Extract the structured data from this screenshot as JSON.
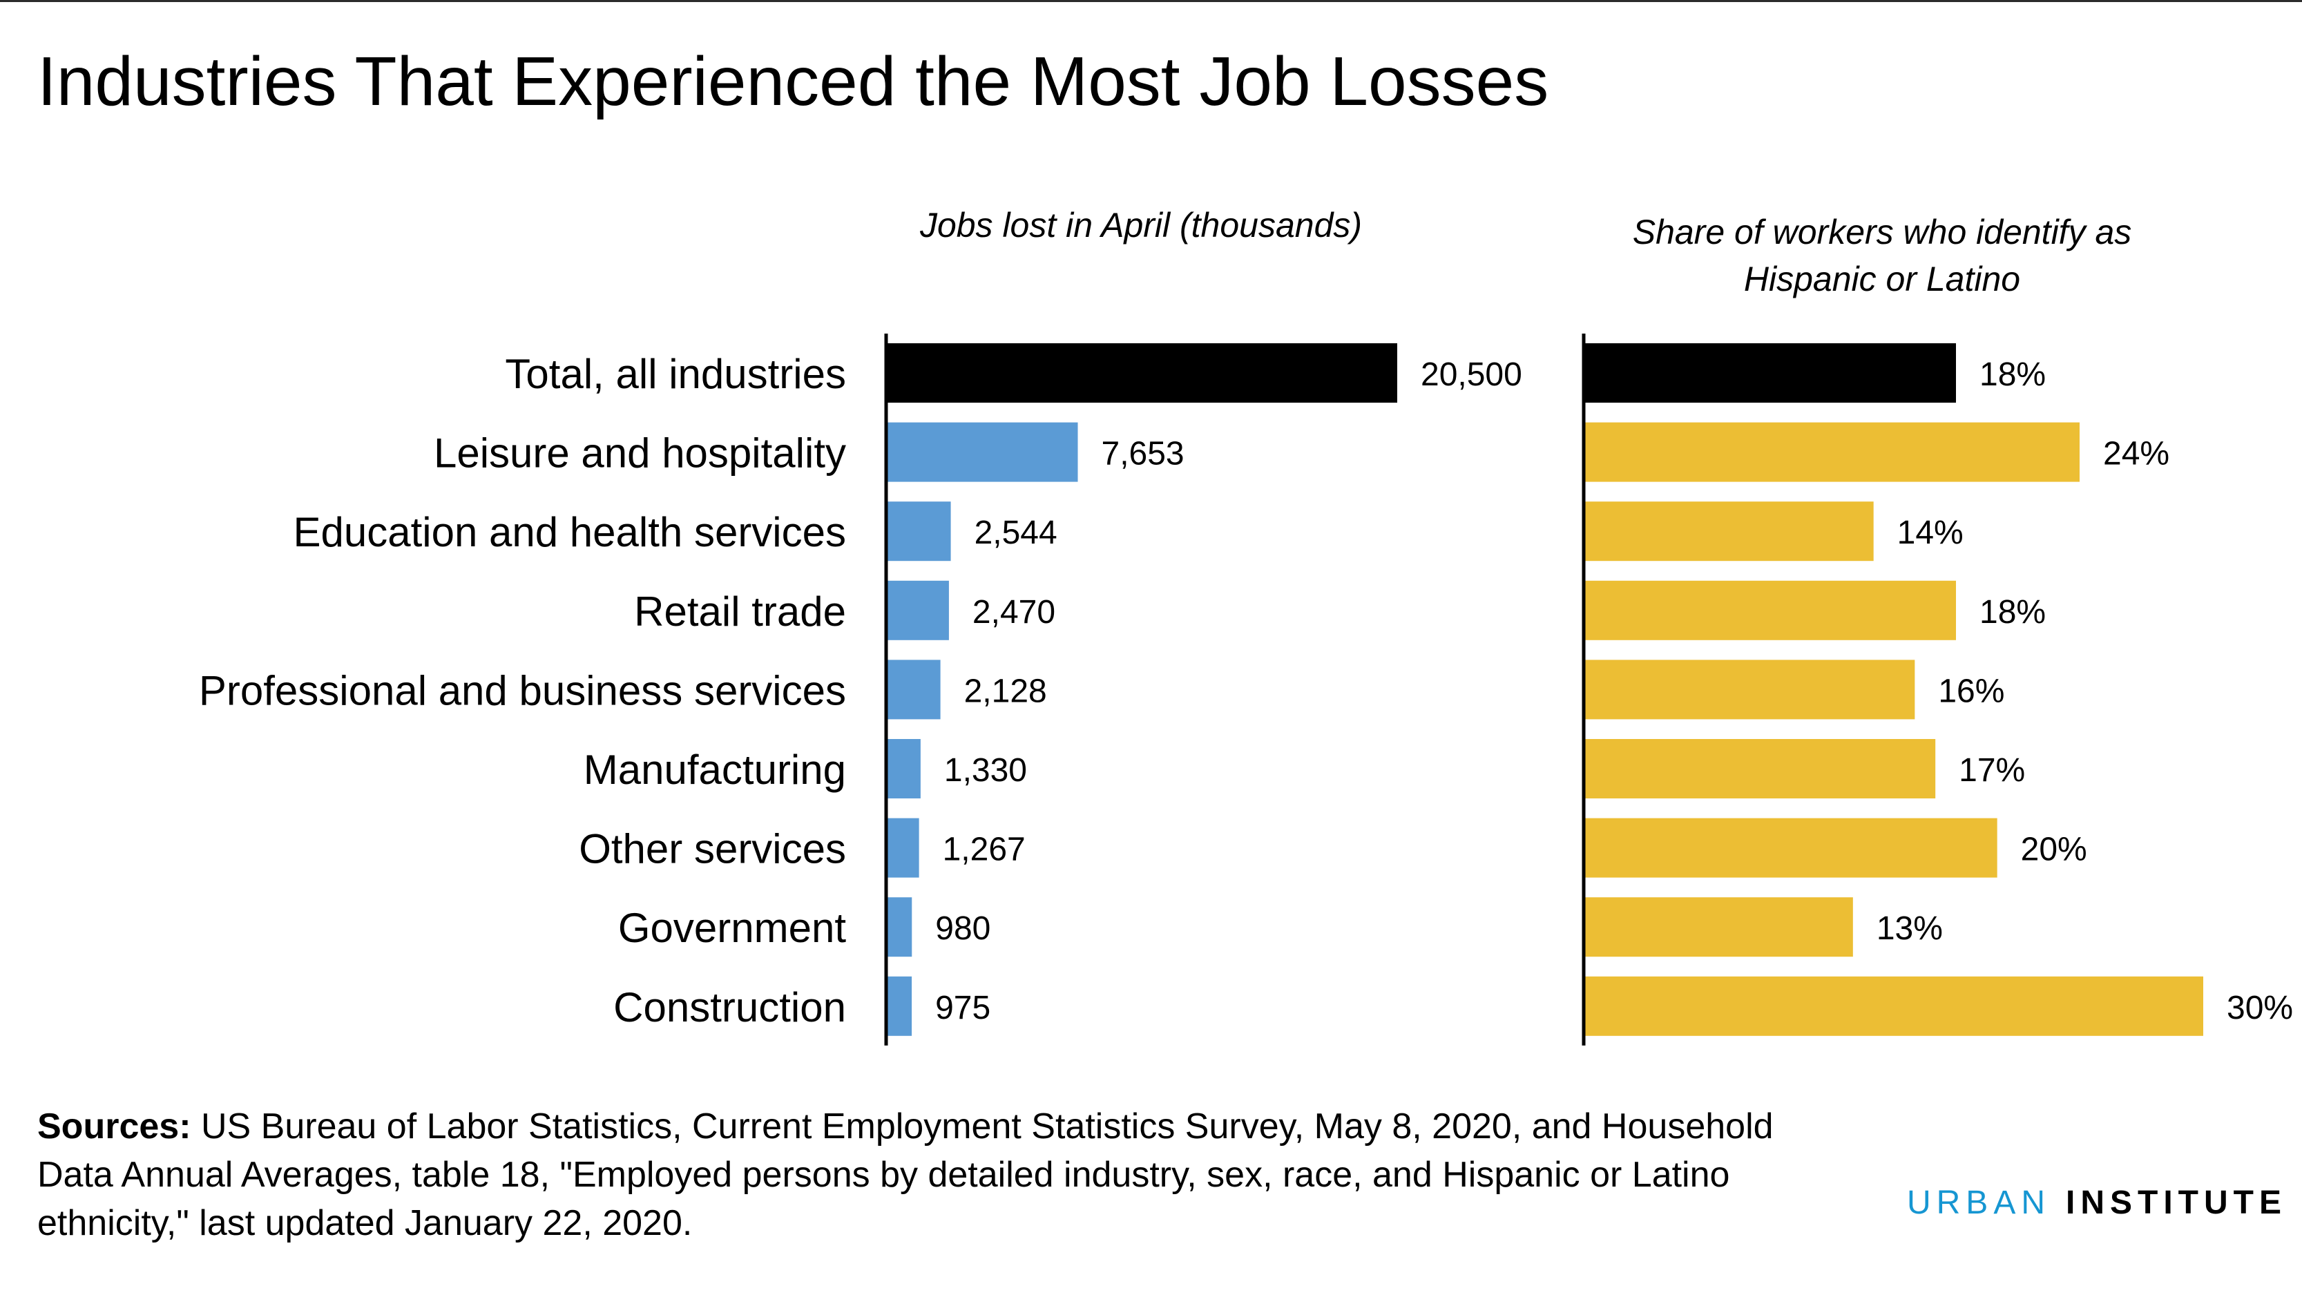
{
  "title": "Industries That Experienced the Most Job Losses",
  "chart_data": [
    {
      "type": "bar",
      "orientation": "horizontal",
      "title": "Jobs lost in April (thousands)",
      "categories": [
        "Total, all industries",
        "Leisure and hospitality",
        "Education and health services",
        "Retail trade",
        "Professional and business services",
        "Manufacturing",
        "Other services",
        "Government",
        "Construction"
      ],
      "values": [
        20500,
        7653,
        2544,
        2470,
        2128,
        1330,
        1267,
        980,
        975
      ],
      "labels": [
        "20,500",
        "7,653",
        "2,544",
        "2,470",
        "2,128",
        "1,330",
        "1,267",
        "980",
        "975"
      ],
      "colors": [
        "#000000",
        "#5b9bd5",
        "#5b9bd5",
        "#5b9bd5",
        "#5b9bd5",
        "#5b9bd5",
        "#5b9bd5",
        "#5b9bd5",
        "#5b9bd5"
      ],
      "xlim": [
        0,
        20500
      ],
      "grid": false,
      "legend": "none"
    },
    {
      "type": "bar",
      "orientation": "horizontal",
      "title": "Share of workers who identify as Hispanic or Latino",
      "categories": [
        "Total, all industries",
        "Leisure and hospitality",
        "Education and health services",
        "Retail trade",
        "Professional and business services",
        "Manufacturing",
        "Other services",
        "Government",
        "Construction"
      ],
      "values": [
        18,
        24,
        14,
        18,
        16,
        17,
        20,
        13,
        30
      ],
      "labels": [
        "18%",
        "24%",
        "14%",
        "18%",
        "16%",
        "17%",
        "20%",
        "13%",
        "30%"
      ],
      "colors": [
        "#000000",
        "#ecbe34",
        "#ecbe34",
        "#ecbe34",
        "#ecbe34",
        "#ecbe34",
        "#ecbe34",
        "#ecbe34",
        "#ecbe34"
      ],
      "xlim": [
        0,
        30
      ],
      "grid": false,
      "legend": "none"
    }
  ],
  "sources": {
    "label": "Sources:",
    "text": " US Bureau of Labor Statistics, Current Employment Statistics Survey, May 8, 2020, and Household Data Annual Averages, table 18, \"Employed persons by detailed industry, sex, race, and Hispanic or Latino ethnicity,\" last updated January 22, 2020."
  },
  "logo": {
    "urban": "URBAN",
    "institute": "INSTITUTE"
  }
}
